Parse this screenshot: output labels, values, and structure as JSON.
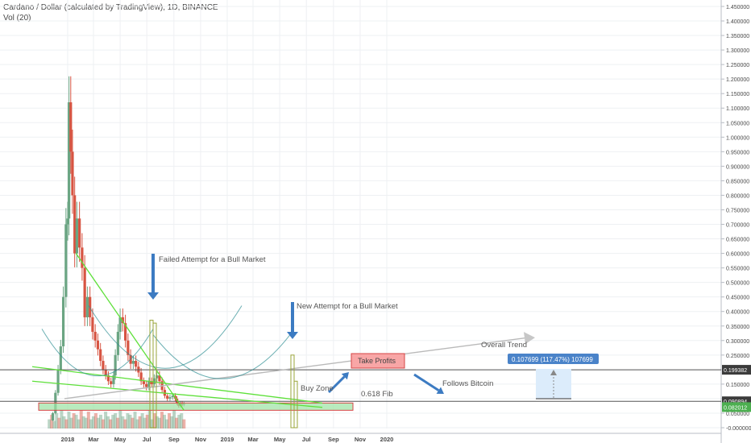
{
  "header": {
    "title": "Cardano / Dollar (calculated by TradingView), 1D, BINANCE",
    "volume_label": "Vol (20)"
  },
  "colors": {
    "up": "#6ba583",
    "down": "#d75442",
    "trend_green": "#5ee03a",
    "arrow_blue": "#3c7bc2",
    "grid": "#eef0f3",
    "axis_text": "#4a4a4a",
    "zone_fill": "#9be3a3",
    "take_profit_fill": "#f8a6a6",
    "take_profit_border": "#d64545",
    "measure_fill": "#dcecfb",
    "badge_blue": "#4a83c9",
    "price_badge_dark": "#3b3b3b",
    "price_badge_green": "#4caf50"
  },
  "chart_data": {
    "type": "candlestick",
    "series_name": "ADA/USD",
    "ylim": [
      0.0,
      1.45
    ],
    "y_ticks": [
      "1.450000",
      "1.400000",
      "1.350000",
      "1.300000",
      "1.250000",
      "1.200000",
      "1.150000",
      "1.100000",
      "1.050000",
      "1.000000",
      "0.950000",
      "0.900000",
      "0.850000",
      "0.800000",
      "0.750000",
      "0.700000",
      "0.650000",
      "0.600000",
      "0.550000",
      "0.500000",
      "0.450000",
      "0.400000",
      "0.350000",
      "0.300000",
      "0.250000",
      "0.200000",
      "0.150000",
      "0.100000",
      "0.050000",
      "-0.000000"
    ],
    "y_tick_values": [
      1.45,
      1.4,
      1.35,
      1.3,
      1.25,
      1.2,
      1.15,
      1.1,
      1.05,
      1.0,
      0.95,
      0.9,
      0.85,
      0.8,
      0.75,
      0.7,
      0.65,
      0.6,
      0.55,
      0.5,
      0.45,
      0.4,
      0.35,
      0.3,
      0.25,
      0.2,
      0.15,
      0.1,
      0.05,
      0.0
    ],
    "x_ticks": [
      "2018",
      "Mar",
      "May",
      "Jul",
      "Sep",
      "Nov",
      "2019",
      "Mar",
      "May",
      "Jul",
      "Sep",
      "Nov",
      "2020"
    ],
    "x_tick_dates": [
      "2018-01-01",
      "2018-03-01",
      "2018-05-01",
      "2018-07-01",
      "2018-09-01",
      "2018-11-01",
      "2019-01-01",
      "2019-03-01",
      "2019-05-01",
      "2019-07-01",
      "2019-09-01",
      "2019-11-01",
      "2020-01-01"
    ],
    "price_path": [
      [
        "2017-11-20",
        0.025
      ],
      [
        "2017-11-28",
        0.05
      ],
      [
        "2017-12-04",
        0.12
      ],
      [
        "2017-12-10",
        0.2
      ],
      [
        "2017-12-16",
        0.28
      ],
      [
        "2017-12-22",
        0.45
      ],
      [
        "2017-12-28",
        0.7
      ],
      [
        "2018-01-01",
        0.72
      ],
      [
        "2018-01-04",
        1.12
      ],
      [
        "2018-01-08",
        0.95
      ],
      [
        "2018-01-12",
        0.8
      ],
      [
        "2018-01-17",
        0.6
      ],
      [
        "2018-01-22",
        0.72
      ],
      [
        "2018-01-28",
        0.62
      ],
      [
        "2018-02-03",
        0.55
      ],
      [
        "2018-02-09",
        0.38
      ],
      [
        "2018-02-15",
        0.45
      ],
      [
        "2018-02-21",
        0.38
      ],
      [
        "2018-02-27",
        0.33
      ],
      [
        "2018-03-05",
        0.3
      ],
      [
        "2018-03-11",
        0.27
      ],
      [
        "2018-03-17",
        0.23
      ],
      [
        "2018-03-23",
        0.2
      ],
      [
        "2018-03-29",
        0.18
      ],
      [
        "2018-04-04",
        0.16
      ],
      [
        "2018-04-10",
        0.15
      ],
      [
        "2018-04-16",
        0.18
      ],
      [
        "2018-04-20",
        0.25
      ],
      [
        "2018-04-26",
        0.33
      ],
      [
        "2018-05-01",
        0.38
      ],
      [
        "2018-05-07",
        0.36
      ],
      [
        "2018-05-13",
        0.3
      ],
      [
        "2018-05-19",
        0.25
      ],
      [
        "2018-05-25",
        0.22
      ],
      [
        "2018-05-31",
        0.23
      ],
      [
        "2018-06-06",
        0.21
      ],
      [
        "2018-06-12",
        0.19
      ],
      [
        "2018-06-18",
        0.16
      ],
      [
        "2018-06-24",
        0.15
      ],
      [
        "2018-06-30",
        0.14
      ],
      [
        "2018-07-06",
        0.16
      ],
      [
        "2018-07-12",
        0.15
      ],
      [
        "2018-07-18",
        0.17
      ],
      [
        "2018-07-24",
        0.18
      ],
      [
        "2018-07-30",
        0.16
      ],
      [
        "2018-08-05",
        0.13
      ],
      [
        "2018-08-11",
        0.11
      ],
      [
        "2018-08-17",
        0.1
      ],
      [
        "2018-08-23",
        0.105
      ],
      [
        "2018-08-29",
        0.11
      ],
      [
        "2018-09-04",
        0.1
      ],
      [
        "2018-09-08",
        0.085
      ],
      [
        "2018-09-12",
        0.075
      ],
      [
        "2018-09-16",
        0.085
      ],
      [
        "2018-09-20",
        0.08
      ],
      [
        "2018-09-24",
        0.082
      ]
    ],
    "volume_max": 1.0,
    "volume_series": [
      0.3,
      0.45,
      0.25,
      0.5,
      0.35,
      0.6,
      0.4,
      0.3,
      0.55,
      0.35,
      0.5,
      0.45,
      0.3,
      0.6,
      0.4,
      0.35,
      0.55,
      0.3,
      0.4,
      0.5,
      0.35,
      0.45,
      0.3,
      0.55,
      0.4,
      0.3,
      0.45,
      0.5,
      0.35,
      0.6,
      0.4,
      0.3,
      0.5,
      0.45,
      0.35,
      0.55,
      0.3,
      0.4,
      0.5,
      0.35,
      0.45,
      0.6,
      0.3,
      0.5,
      0.4,
      0.35,
      0.55,
      0.45,
      0.3,
      0.5,
      0.4,
      0.6,
      0.35,
      0.45,
      0.5,
      0.3
    ],
    "horizontal_levels": [
      0.199382,
      0.090894
    ],
    "last_price": 0.082012,
    "price_labels": [
      "0.199382",
      "0.090894",
      "0.082012"
    ],
    "fib_label": "0.618 Fib"
  },
  "annotations": {
    "failed_attempt": "Failed Attempt for a Bull Market",
    "new_attempt": "New Attempt for a Bull Market",
    "overall_trend": "Overall Trend",
    "take_profits": "Take Profits",
    "follows_bitcoin": "Follows Bitcoin",
    "buy_zone": "Buy Zone",
    "measure_label": "0.107699 (117.47%) 107699"
  }
}
